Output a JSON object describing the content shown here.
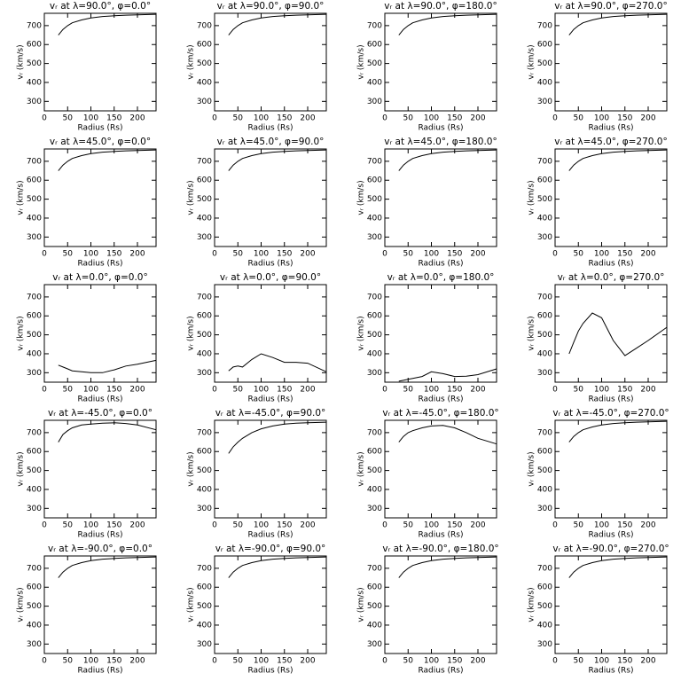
{
  "chart_data": [
    {
      "type": "line",
      "title": "vᵣ at λ=90.0°, φ=0.0°",
      "xlabel": "Radius (Rs)",
      "ylabel": "vᵣ (km/s)",
      "x": [
        30,
        40,
        50,
        60,
        80,
        100,
        125,
        150,
        175,
        200,
        240
      ],
      "values": [
        650,
        680,
        700,
        715,
        730,
        740,
        748,
        752,
        755,
        757,
        760
      ],
      "xlim": [
        0,
        240
      ],
      "ylim": [
        250,
        765
      ],
      "xticks": [
        0,
        50,
        100,
        150,
        200
      ],
      "yticks": [
        300,
        400,
        500,
        600,
        700
      ],
      "color": "#000000"
    },
    {
      "type": "line",
      "title": "vᵣ at λ=90.0°, φ=90.0°",
      "xlabel": "Radius (Rs)",
      "ylabel": "vᵣ (km/s)",
      "x": [
        30,
        40,
        50,
        60,
        80,
        100,
        125,
        150,
        175,
        200,
        240
      ],
      "values": [
        650,
        680,
        700,
        715,
        730,
        740,
        748,
        752,
        755,
        757,
        760
      ],
      "xlim": [
        0,
        240
      ],
      "ylim": [
        250,
        765
      ],
      "xticks": [
        0,
        50,
        100,
        150,
        200
      ],
      "yticks": [
        300,
        400,
        500,
        600,
        700
      ],
      "color": "#000000"
    },
    {
      "type": "line",
      "title": "vᵣ at λ=90.0°, φ=180.0°",
      "xlabel": "Radius (Rs)",
      "ylabel": "vᵣ (km/s)",
      "x": [
        30,
        40,
        50,
        60,
        80,
        100,
        125,
        150,
        175,
        200,
        240
      ],
      "values": [
        650,
        680,
        700,
        715,
        730,
        740,
        748,
        752,
        755,
        757,
        760
      ],
      "xlim": [
        0,
        240
      ],
      "ylim": [
        250,
        765
      ],
      "xticks": [
        0,
        50,
        100,
        150,
        200
      ],
      "yticks": [
        300,
        400,
        500,
        600,
        700
      ],
      "color": "#000000"
    },
    {
      "type": "line",
      "title": "vᵣ at λ=90.0°, φ=270.0°",
      "xlabel": "Radius (Rs)",
      "ylabel": "vᵣ (km/s)",
      "x": [
        30,
        40,
        50,
        60,
        80,
        100,
        125,
        150,
        175,
        200,
        240
      ],
      "values": [
        650,
        680,
        700,
        715,
        730,
        740,
        748,
        752,
        755,
        757,
        760
      ],
      "xlim": [
        0,
        240
      ],
      "ylim": [
        250,
        765
      ],
      "xticks": [
        0,
        50,
        100,
        150,
        200
      ],
      "yticks": [
        300,
        400,
        500,
        600,
        700
      ],
      "color": "#000000"
    },
    {
      "type": "line",
      "title": "vᵣ at λ=45.0°, φ=0.0°",
      "xlabel": "Radius (Rs)",
      "ylabel": "vᵣ (km/s)",
      "x": [
        30,
        40,
        50,
        60,
        80,
        100,
        125,
        150,
        175,
        200,
        240
      ],
      "values": [
        650,
        680,
        700,
        715,
        730,
        740,
        748,
        752,
        755,
        757,
        760
      ],
      "xlim": [
        0,
        240
      ],
      "ylim": [
        250,
        765
      ],
      "xticks": [
        0,
        50,
        100,
        150,
        200
      ],
      "yticks": [
        300,
        400,
        500,
        600,
        700
      ],
      "color": "#000000"
    },
    {
      "type": "line",
      "title": "vᵣ at λ=45.0°, φ=90.0°",
      "xlabel": "Radius (Rs)",
      "ylabel": "vᵣ (km/s)",
      "x": [
        30,
        40,
        50,
        60,
        80,
        100,
        125,
        150,
        175,
        200,
        240
      ],
      "values": [
        650,
        680,
        700,
        715,
        730,
        740,
        748,
        752,
        755,
        757,
        760
      ],
      "xlim": [
        0,
        240
      ],
      "ylim": [
        250,
        765
      ],
      "xticks": [
        0,
        50,
        100,
        150,
        200
      ],
      "yticks": [
        300,
        400,
        500,
        600,
        700
      ],
      "color": "#000000"
    },
    {
      "type": "line",
      "title": "vᵣ at λ=45.0°, φ=180.0°",
      "xlabel": "Radius (Rs)",
      "ylabel": "vᵣ (km/s)",
      "x": [
        30,
        40,
        50,
        60,
        80,
        100,
        125,
        150,
        175,
        200,
        240
      ],
      "values": [
        650,
        680,
        700,
        715,
        730,
        740,
        748,
        752,
        755,
        757,
        760
      ],
      "xlim": [
        0,
        240
      ],
      "ylim": [
        250,
        765
      ],
      "xticks": [
        0,
        50,
        100,
        150,
        200
      ],
      "yticks": [
        300,
        400,
        500,
        600,
        700
      ],
      "color": "#000000"
    },
    {
      "type": "line",
      "title": "vᵣ at λ=45.0°, φ=270.0°",
      "xlabel": "Radius (Rs)",
      "ylabel": "vᵣ (km/s)",
      "x": [
        30,
        40,
        50,
        60,
        80,
        100,
        125,
        150,
        175,
        200,
        240
      ],
      "values": [
        650,
        680,
        700,
        715,
        730,
        740,
        748,
        752,
        755,
        757,
        760
      ],
      "xlim": [
        0,
        240
      ],
      "ylim": [
        250,
        765
      ],
      "xticks": [
        0,
        50,
        100,
        150,
        200
      ],
      "yticks": [
        300,
        400,
        500,
        600,
        700
      ],
      "color": "#000000"
    },
    {
      "type": "line",
      "title": "vᵣ at λ=0.0°, φ=0.0°",
      "xlabel": "Radius (Rs)",
      "ylabel": "vᵣ (km/s)",
      "x": [
        30,
        40,
        50,
        60,
        80,
        100,
        125,
        150,
        175,
        200,
        240
      ],
      "values": [
        340,
        330,
        320,
        310,
        305,
        300,
        300,
        315,
        335,
        345,
        365
      ],
      "xlim": [
        0,
        240
      ],
      "ylim": [
        250,
        765
      ],
      "xticks": [
        0,
        50,
        100,
        150,
        200
      ],
      "yticks": [
        300,
        400,
        500,
        600,
        700
      ],
      "color": "#000000"
    },
    {
      "type": "line",
      "title": "vᵣ at λ=0.0°, φ=90.0°",
      "xlabel": "Radius (Rs)",
      "ylabel": "vᵣ (km/s)",
      "x": [
        30,
        40,
        50,
        60,
        80,
        100,
        125,
        150,
        175,
        200,
        240
      ],
      "values": [
        310,
        330,
        335,
        330,
        370,
        400,
        380,
        355,
        355,
        350,
        305
      ],
      "xlim": [
        0,
        240
      ],
      "ylim": [
        250,
        765
      ],
      "xticks": [
        0,
        50,
        100,
        150,
        200
      ],
      "yticks": [
        300,
        400,
        500,
        600,
        700
      ],
      "color": "#000000"
    },
    {
      "type": "line",
      "title": "vᵣ at λ=0.0°, φ=180.0°",
      "xlabel": "Radius (Rs)",
      "ylabel": "vᵣ (km/s)",
      "x": [
        30,
        40,
        50,
        60,
        80,
        100,
        125,
        150,
        175,
        200,
        240
      ],
      "values": [
        255,
        260,
        265,
        270,
        280,
        305,
        295,
        280,
        282,
        290,
        320
      ],
      "xlim": [
        0,
        240
      ],
      "ylim": [
        250,
        765
      ],
      "xticks": [
        0,
        50,
        100,
        150,
        200
      ],
      "yticks": [
        300,
        400,
        500,
        600,
        700
      ],
      "color": "#000000"
    },
    {
      "type": "line",
      "title": "vᵣ at λ=0.0°, φ=270.0°",
      "xlabel": "Radius (Rs)",
      "ylabel": "vᵣ (km/s)",
      "x": [
        30,
        40,
        50,
        60,
        80,
        100,
        125,
        150,
        175,
        200,
        240
      ],
      "values": [
        400,
        460,
        520,
        560,
        615,
        590,
        470,
        390,
        430,
        470,
        540
      ],
      "xlim": [
        0,
        240
      ],
      "ylim": [
        250,
        765
      ],
      "xticks": [
        0,
        50,
        100,
        150,
        200
      ],
      "yticks": [
        300,
        400,
        500,
        600,
        700
      ],
      "color": "#000000"
    },
    {
      "type": "line",
      "title": "vᵣ at λ=-45.0°, φ=0.0°",
      "xlabel": "Radius (Rs)",
      "ylabel": "vᵣ (km/s)",
      "x": [
        30,
        40,
        50,
        60,
        80,
        100,
        125,
        150,
        175,
        200,
        240
      ],
      "values": [
        650,
        690,
        710,
        725,
        740,
        745,
        750,
        752,
        748,
        740,
        715
      ],
      "xlim": [
        0,
        240
      ],
      "ylim": [
        250,
        765
      ],
      "xticks": [
        0,
        50,
        100,
        150,
        200
      ],
      "yticks": [
        300,
        400,
        500,
        600,
        700
      ],
      "color": "#000000"
    },
    {
      "type": "line",
      "title": "vᵣ at λ=-45.0°, φ=90.0°",
      "xlabel": "Radius (Rs)",
      "ylabel": "vᵣ (km/s)",
      "x": [
        30,
        40,
        50,
        60,
        80,
        100,
        125,
        150,
        175,
        200,
        240
      ],
      "values": [
        590,
        625,
        650,
        670,
        700,
        720,
        735,
        745,
        750,
        752,
        755
      ],
      "xlim": [
        0,
        240
      ],
      "ylim": [
        250,
        765
      ],
      "xticks": [
        0,
        50,
        100,
        150,
        200
      ],
      "yticks": [
        300,
        400,
        500,
        600,
        700
      ],
      "color": "#000000"
    },
    {
      "type": "line",
      "title": "vᵣ at λ=-45.0°, φ=180.0°",
      "xlabel": "Radius (Rs)",
      "ylabel": "vᵣ (km/s)",
      "x": [
        30,
        40,
        50,
        60,
        80,
        100,
        125,
        150,
        175,
        200,
        240
      ],
      "values": [
        650,
        680,
        700,
        710,
        725,
        735,
        738,
        725,
        700,
        670,
        640
      ],
      "xlim": [
        0,
        240
      ],
      "ylim": [
        250,
        765
      ],
      "xticks": [
        0,
        50,
        100,
        150,
        200
      ],
      "yticks": [
        300,
        400,
        500,
        600,
        700
      ],
      "color": "#000000"
    },
    {
      "type": "line",
      "title": "vᵣ at λ=-45.0°, φ=270.0°",
      "xlabel": "Radius (Rs)",
      "ylabel": "vᵣ (km/s)",
      "x": [
        30,
        40,
        50,
        60,
        80,
        100,
        125,
        150,
        175,
        200,
        240
      ],
      "values": [
        650,
        680,
        700,
        715,
        730,
        740,
        748,
        752,
        755,
        757,
        760
      ],
      "xlim": [
        0,
        240
      ],
      "ylim": [
        250,
        765
      ],
      "xticks": [
        0,
        50,
        100,
        150,
        200
      ],
      "yticks": [
        300,
        400,
        500,
        600,
        700
      ],
      "color": "#000000"
    },
    {
      "type": "line",
      "title": "vᵣ at λ=-90.0°, φ=0.0°",
      "xlabel": "Radius (Rs)",
      "ylabel": "vᵣ (km/s)",
      "x": [
        30,
        40,
        50,
        60,
        80,
        100,
        125,
        150,
        175,
        200,
        240
      ],
      "values": [
        650,
        680,
        700,
        715,
        730,
        740,
        748,
        752,
        755,
        757,
        760
      ],
      "xlim": [
        0,
        240
      ],
      "ylim": [
        250,
        765
      ],
      "xticks": [
        0,
        50,
        100,
        150,
        200
      ],
      "yticks": [
        300,
        400,
        500,
        600,
        700
      ],
      "color": "#000000"
    },
    {
      "type": "line",
      "title": "vᵣ at λ=-90.0°, φ=90.0°",
      "xlabel": "Radius (Rs)",
      "ylabel": "vᵣ (km/s)",
      "x": [
        30,
        40,
        50,
        60,
        80,
        100,
        125,
        150,
        175,
        200,
        240
      ],
      "values": [
        650,
        680,
        700,
        715,
        730,
        740,
        748,
        752,
        755,
        757,
        760
      ],
      "xlim": [
        0,
        240
      ],
      "ylim": [
        250,
        765
      ],
      "xticks": [
        0,
        50,
        100,
        150,
        200
      ],
      "yticks": [
        300,
        400,
        500,
        600,
        700
      ],
      "color": "#000000"
    },
    {
      "type": "line",
      "title": "vᵣ at λ=-90.0°, φ=180.0°",
      "xlabel": "Radius (Rs)",
      "ylabel": "vᵣ (km/s)",
      "x": [
        30,
        40,
        50,
        60,
        80,
        100,
        125,
        150,
        175,
        200,
        240
      ],
      "values": [
        650,
        680,
        700,
        715,
        730,
        740,
        748,
        752,
        755,
        757,
        760
      ],
      "xlim": [
        0,
        240
      ],
      "ylim": [
        250,
        765
      ],
      "xticks": [
        0,
        50,
        100,
        150,
        200
      ],
      "yticks": [
        300,
        400,
        500,
        600,
        700
      ],
      "color": "#000000"
    },
    {
      "type": "line",
      "title": "vᵣ at λ=-90.0°, φ=270.0°",
      "xlabel": "Radius (Rs)",
      "ylabel": "vᵣ (km/s)",
      "x": [
        30,
        40,
        50,
        60,
        80,
        100,
        125,
        150,
        175,
        200,
        240
      ],
      "values": [
        650,
        680,
        700,
        715,
        730,
        740,
        748,
        752,
        755,
        757,
        760
      ],
      "xlim": [
        0,
        240
      ],
      "ylim": [
        250,
        765
      ],
      "xticks": [
        0,
        50,
        100,
        150,
        200
      ],
      "yticks": [
        300,
        400,
        500,
        600,
        700
      ],
      "color": "#000000"
    }
  ]
}
